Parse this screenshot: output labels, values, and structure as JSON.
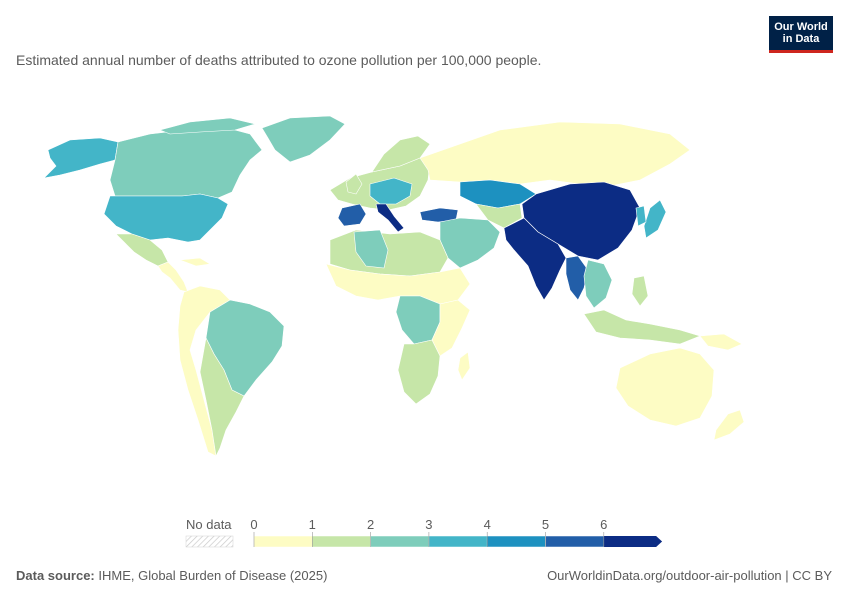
{
  "header": {
    "subtitle": "Estimated annual number of deaths attributed to ozone pollution per 100,000 people."
  },
  "logo": {
    "line1": "Our World",
    "line2": "in Data"
  },
  "legend": {
    "no_data_label": "No data",
    "tick_labels": [
      "0",
      "1",
      "2",
      "3",
      "4",
      "5",
      "6"
    ],
    "colors": [
      "#fdfcc4",
      "#c6e6a8",
      "#7ecdbb",
      "#43b5c8",
      "#1d91c0",
      "#225ea8",
      "#0c2c84"
    ],
    "no_data_color": "#e5e5e5"
  },
  "footer": {
    "source_label": "Data source:",
    "source_text": " IHME, Global Burden of Disease (2025)",
    "url_text": "OurWorldinData.org/outdoor-air-pollution | CC BY"
  },
  "regions": {
    "north_america": "#7ecdbb",
    "alaska": "#43b5c8",
    "greenland": "#7ecdbb",
    "usa": "#43b5c8",
    "mexico": "#c6e6a8",
    "central_america": "#fdfcc4",
    "south_america_north": "#fdfcc4",
    "brazil": "#7ecdbb",
    "south_america_south": "#c6e6a8",
    "europe": "#c6e6a8",
    "central_europe": "#43b5c8",
    "spain": "#225ea8",
    "italy": "#0c2c84",
    "russia": "#fdfcc4",
    "kazakhstan": "#1d91c0",
    "turkey": "#225ea8",
    "middle_east": "#7ecdbb",
    "africa_north": "#c6e6a8",
    "algeria": "#7ecdbb",
    "africa_west": "#fdfcc4",
    "central_africa": "#7ecdbb",
    "africa_south": "#c6e6a8",
    "china": "#0c2c84",
    "india": "#0c2c84",
    "myanmar": "#225ea8",
    "se_asia": "#7ecdbb",
    "japan": "#43b5c8",
    "indonesia": "#c6e6a8",
    "australia": "#fdfcc4",
    "new_zealand": "#fdfcc4"
  }
}
